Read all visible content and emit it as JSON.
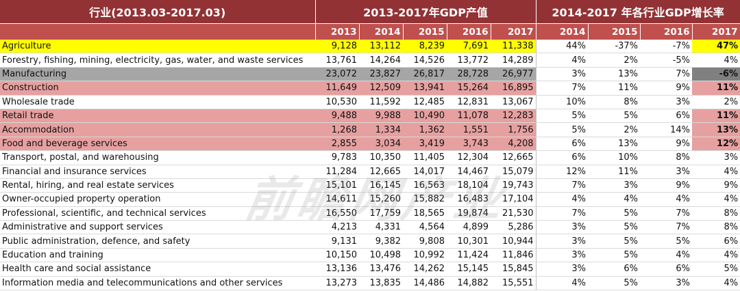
{
  "header": {
    "industry_col": "行业(2013.03-2017.03)",
    "gdp_group": "2013-2017年GDP产值",
    "growth_group": "2014-2017 年各行业GDP增长率",
    "gdp_years": [
      "2013",
      "2014",
      "2015",
      "2016",
      "2017"
    ],
    "growth_years": [
      "2014",
      "2015",
      "2016",
      "2017"
    ]
  },
  "colors": {
    "yellow": "#ffff00",
    "gray": "#a6a6a6",
    "pink": "#e6a0a0",
    "dark_gray": "#808080"
  },
  "watermark": "前瞻网产业",
  "rows": [
    {
      "name": "Agriculture",
      "gdp": [
        "9,128",
        "13,112",
        "8,239",
        "7,691",
        "11,338"
      ],
      "growth": [
        "44%",
        "-37%",
        "-7%",
        "47%"
      ],
      "style": "yellow"
    },
    {
      "name": "Forestry, fishing, mining, electricity, gas, water, and waste services",
      "gdp": [
        "13,761",
        "14,264",
        "14,526",
        "13,772",
        "14,289"
      ],
      "growth": [
        "4%",
        "2%",
        "-5%",
        "4%"
      ],
      "style": ""
    },
    {
      "name": "Manufacturing",
      "gdp": [
        "23,072",
        "23,827",
        "26,817",
        "28,728",
        "26,977"
      ],
      "growth": [
        "3%",
        "13%",
        "7%",
        "-6%"
      ],
      "style": "gray"
    },
    {
      "name": "Construction",
      "gdp": [
        "11,649",
        "12,509",
        "13,941",
        "15,264",
        "16,895"
      ],
      "growth": [
        "7%",
        "11%",
        "9%",
        "11%"
      ],
      "style": "pink"
    },
    {
      "name": "Wholesale trade",
      "gdp": [
        "10,530",
        "11,592",
        "12,485",
        "12,831",
        "13,067"
      ],
      "growth": [
        "10%",
        "8%",
        "3%",
        "2%"
      ],
      "style": ""
    },
    {
      "name": "Retail trade",
      "gdp": [
        "9,488",
        "9,988",
        "10,490",
        "11,078",
        "12,283"
      ],
      "growth": [
        "5%",
        "5%",
        "6%",
        "11%"
      ],
      "style": "pink"
    },
    {
      "name": "Accommodation",
      "gdp": [
        "1,268",
        "1,334",
        "1,362",
        "1,551",
        "1,756"
      ],
      "growth": [
        "5%",
        "2%",
        "14%",
        "13%"
      ],
      "style": "pink"
    },
    {
      "name": "Food and beverage services",
      "gdp": [
        "2,855",
        "3,034",
        "3,419",
        "3,743",
        "4,208"
      ],
      "growth": [
        "6%",
        "13%",
        "9%",
        "12%"
      ],
      "style": "pink"
    },
    {
      "name": "Transport, postal, and warehousing",
      "gdp": [
        "9,783",
        "10,350",
        "11,405",
        "12,304",
        "12,665"
      ],
      "growth": [
        "6%",
        "10%",
        "8%",
        "3%"
      ],
      "style": ""
    },
    {
      "name": "Financial and insurance services",
      "gdp": [
        "11,284",
        "12,665",
        "14,017",
        "14,467",
        "15,079"
      ],
      "growth": [
        "12%",
        "11%",
        "3%",
        "4%"
      ],
      "style": ""
    },
    {
      "name": "Rental, hiring, and real estate services",
      "gdp": [
        "15,101",
        "16,145",
        "16,563",
        "18,104",
        "19,743"
      ],
      "growth": [
        "7%",
        "3%",
        "9%",
        "9%"
      ],
      "style": ""
    },
    {
      "name": "Owner-occupied property operation",
      "gdp": [
        "14,611",
        "15,260",
        "15,882",
        "16,483",
        "17,104"
      ],
      "growth": [
        "4%",
        "4%",
        "4%",
        "4%"
      ],
      "style": ""
    },
    {
      "name": "Professional, scientific, and technical services",
      "gdp": [
        "16,550",
        "17,759",
        "18,565",
        "19,874",
        "21,530"
      ],
      "growth": [
        "7%",
        "5%",
        "7%",
        "8%"
      ],
      "style": ""
    },
    {
      "name": "Administrative and support services",
      "gdp": [
        "4,213",
        "4,331",
        "4,564",
        "4,899",
        "5,286"
      ],
      "growth": [
        "3%",
        "5%",
        "7%",
        "8%"
      ],
      "style": ""
    },
    {
      "name": "Public administration, defence, and safety",
      "gdp": [
        "9,131",
        "9,382",
        "9,808",
        "10,301",
        "10,944"
      ],
      "growth": [
        "3%",
        "5%",
        "5%",
        "6%"
      ],
      "style": ""
    },
    {
      "name": "Education and training",
      "gdp": [
        "10,150",
        "10,498",
        "10,992",
        "11,424",
        "11,846"
      ],
      "growth": [
        "3%",
        "5%",
        "4%",
        "4%"
      ],
      "style": ""
    },
    {
      "name": "Health care and social assistance",
      "gdp": [
        "13,136",
        "13,476",
        "14,262",
        "15,145",
        "15,845"
      ],
      "growth": [
        "3%",
        "6%",
        "6%",
        "5%"
      ],
      "style": ""
    },
    {
      "name": "Information media and telecommunications and other services",
      "gdp": [
        "13,273",
        "13,835",
        "14,486",
        "14,882",
        "15,551"
      ],
      "growth": [
        "4%",
        "5%",
        "3%",
        "4%"
      ],
      "style": ""
    }
  ]
}
